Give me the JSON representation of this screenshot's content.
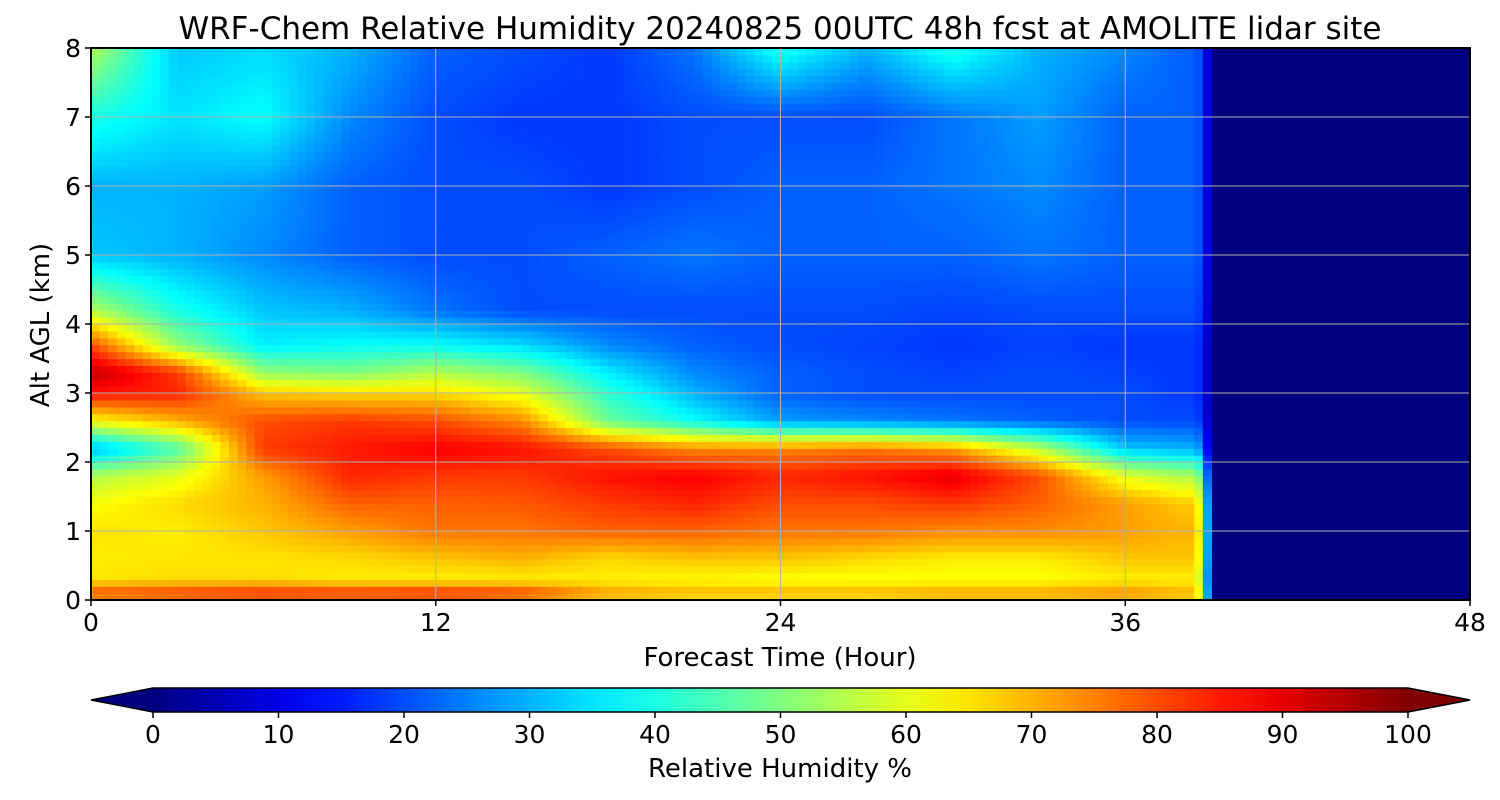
{
  "chart_data": {
    "type": "heatmap",
    "title": "WRF-Chem Relative Humidity 20240825 00UTC 48h fcst at AMOLITE lidar site",
    "xlabel": "Forecast Time (Hour)",
    "ylabel": "Alt AGL (km)",
    "xlim": [
      0,
      48
    ],
    "ylim": [
      0,
      8
    ],
    "x_ticks": [
      "0",
      "12",
      "24",
      "36",
      "48"
    ],
    "y_ticks": [
      "0",
      "1",
      "2",
      "3",
      "4",
      "5",
      "6",
      "7",
      "8"
    ],
    "grid": true,
    "colorbar": {
      "label": "Relative Humidity %",
      "colormap": "jet",
      "range": [
        0,
        100
      ],
      "ticks": [
        "0",
        "10",
        "20",
        "30",
        "40",
        "50",
        "60",
        "70",
        "80",
        "90",
        "100"
      ],
      "extend": "both"
    },
    "data_end_hour": 38.5,
    "x": [
      0,
      3,
      6,
      9,
      12,
      15,
      18,
      21,
      24,
      27,
      30,
      33,
      36,
      38
    ],
    "y": [
      0,
      0.1,
      0.3,
      0.6,
      1.0,
      1.4,
      1.8,
      2.2,
      2.6,
      3.0,
      3.3,
      3.7,
      4.2,
      5.0,
      6.0,
      7.0,
      8.0
    ],
    "z": [
      [
        70,
        72,
        74,
        72,
        74,
        70,
        66,
        64,
        64,
        64,
        66,
        66,
        68,
        66
      ],
      [
        80,
        82,
        84,
        83,
        84,
        82,
        72,
        70,
        70,
        70,
        72,
        72,
        74,
        70
      ],
      [
        65,
        66,
        66,
        64,
        64,
        64,
        64,
        63,
        62,
        62,
        62,
        62,
        64,
        64
      ],
      [
        64,
        65,
        65,
        66,
        68,
        70,
        66,
        68,
        68,
        66,
        64,
        64,
        68,
        68
      ],
      [
        65,
        64,
        68,
        72,
        76,
        76,
        78,
        78,
        76,
        76,
        74,
        74,
        72,
        70
      ],
      [
        62,
        66,
        70,
        78,
        78,
        79,
        82,
        84,
        80,
        80,
        82,
        78,
        72,
        68
      ],
      [
        55,
        60,
        72,
        84,
        82,
        82,
        86,
        88,
        84,
        86,
        90,
        80,
        60,
        55
      ],
      [
        30,
        45,
        82,
        85,
        88,
        86,
        80,
        74,
        74,
        76,
        72,
        56,
        32,
        30
      ],
      [
        62,
        70,
        80,
        82,
        80,
        74,
        48,
        38,
        28,
        26,
        24,
        22,
        20,
        20
      ],
      [
        86,
        84,
        68,
        66,
        66,
        60,
        42,
        30,
        22,
        20,
        20,
        20,
        20,
        18
      ],
      [
        94,
        82,
        52,
        50,
        55,
        50,
        36,
        26,
        22,
        20,
        19,
        20,
        19,
        18
      ],
      [
        80,
        52,
        36,
        38,
        38,
        34,
        26,
        22,
        20,
        19,
        18,
        19,
        18,
        18
      ],
      [
        55,
        40,
        32,
        30,
        24,
        20,
        20,
        20,
        20,
        20,
        19,
        20,
        20,
        20
      ],
      [
        32,
        30,
        26,
        22,
        20,
        20,
        22,
        24,
        22,
        22,
        22,
        24,
        22,
        22
      ],
      [
        30,
        30,
        28,
        22,
        20,
        20,
        18,
        20,
        22,
        22,
        24,
        26,
        22,
        22
      ],
      [
        40,
        35,
        38,
        26,
        20,
        18,
        18,
        20,
        20,
        20,
        24,
        28,
        22,
        22
      ],
      [
        55,
        32,
        34,
        30,
        22,
        20,
        18,
        24,
        40,
        30,
        40,
        30,
        26,
        22
      ]
    ],
    "no_data_value": 0
  }
}
